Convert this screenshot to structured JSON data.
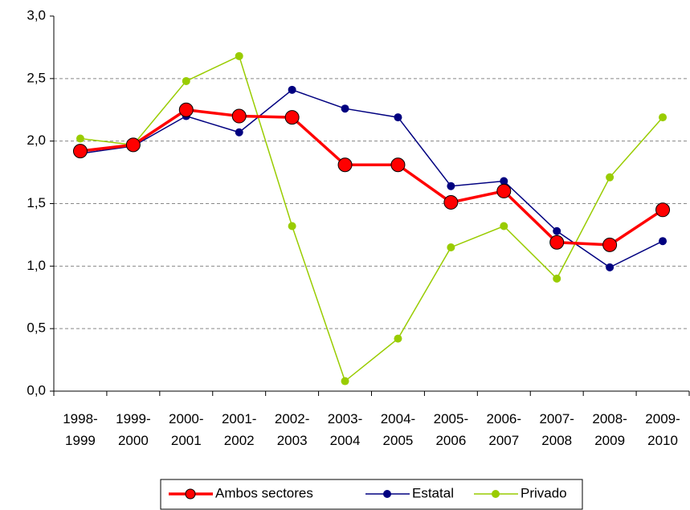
{
  "chart_data": {
    "type": "line",
    "categories": [
      "1998-1999",
      "1999-2000",
      "2000-2001",
      "2001-2002",
      "2002-2003",
      "2003-2004",
      "2004-2005",
      "2005-2006",
      "2006-2007",
      "2007-2008",
      "2008-2009",
      "2009-2010"
    ],
    "series": [
      {
        "name": "Ambos sectores",
        "color": "#ff0000",
        "values": [
          1.92,
          1.97,
          2.25,
          2.2,
          2.19,
          1.81,
          1.81,
          1.51,
          1.6,
          1.19,
          1.17,
          1.45
        ]
      },
      {
        "name": "Estatal",
        "color": "#000080",
        "values": [
          1.9,
          1.96,
          2.2,
          2.07,
          2.41,
          2.26,
          2.19,
          1.64,
          1.68,
          1.28,
          0.99,
          1.2
        ]
      },
      {
        "name": "Privado",
        "color": "#99cc00",
        "values": [
          2.02,
          1.97,
          2.48,
          2.68,
          1.32,
          0.08,
          0.42,
          1.15,
          1.32,
          0.9,
          1.71,
          2.19
        ]
      }
    ],
    "ylim": [
      0,
      3
    ],
    "yticks": [
      {
        "value": 0,
        "label": "0,0"
      },
      {
        "value": 0.5,
        "label": "0,5"
      },
      {
        "value": 1,
        "label": "1,0"
      },
      {
        "value": 1.5,
        "label": "1,5"
      },
      {
        "value": 2,
        "label": "2,0"
      },
      {
        "value": 2.5,
        "label": "2,5"
      },
      {
        "value": 3,
        "label": "3,0"
      }
    ],
    "grid": true,
    "legend": "bottom"
  }
}
